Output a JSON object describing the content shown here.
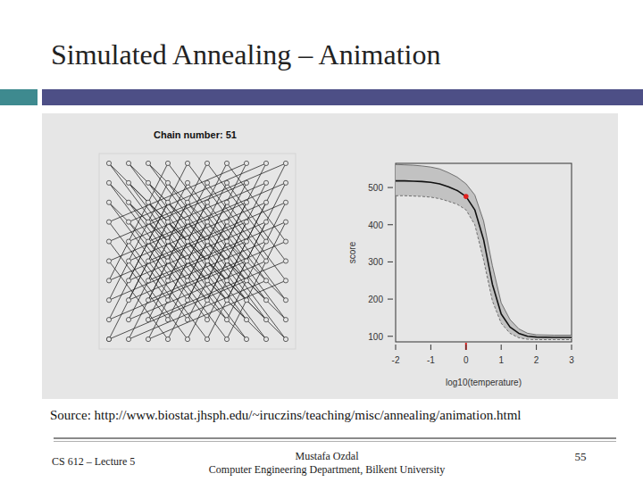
{
  "slide": {
    "title": "Simulated Annealing – Animation",
    "source": "Source: http://www.biostat.jhsph.edu/~iruczins/teaching/misc/annealing/animation.html",
    "footer_left": "CS 612 – Lecture 5",
    "footer_center": [
      "Mustafa Ozdal",
      "Computer Engineering Department, Bilkent University"
    ],
    "page": "55"
  },
  "chart_data": [
    {
      "type": "line",
      "title": "Chain number: 51",
      "x": [
        1,
        8,
        5,
        2,
        9,
        6,
        3,
        10,
        7,
        4,
        1,
        8,
        5,
        2,
        9,
        6,
        3,
        10,
        7,
        4,
        1,
        8,
        5,
        2,
        9,
        6,
        3,
        10,
        7,
        4,
        1,
        8,
        5,
        2,
        9,
        6,
        3,
        10,
        7,
        4,
        1,
        8,
        5,
        2,
        9,
        6,
        3,
        10,
        7,
        4,
        1,
        8,
        5,
        2,
        9,
        6,
        3,
        10,
        7,
        4,
        1,
        8,
        5,
        2,
        9,
        6,
        3,
        10,
        7,
        4,
        1,
        8,
        5,
        2,
        9,
        6,
        3,
        10,
        7,
        4,
        1,
        8,
        5,
        2,
        9,
        6,
        3,
        10,
        7,
        4,
        1,
        8,
        5,
        2,
        9,
        6,
        3,
        10,
        7,
        4,
        1
      ],
      "series": [
        {
          "color": "#2a2a2a",
          "marker": "circle",
          "values": [
            1,
            4,
            8,
            2,
            5,
            9,
            3,
            6,
            10,
            4,
            8,
            1,
            5,
            9,
            2,
            6,
            10,
            3,
            7,
            1,
            5,
            8,
            2,
            6,
            9,
            3,
            7,
            10,
            4,
            8,
            2,
            5,
            9,
            3,
            6,
            10,
            4,
            7,
            1,
            5,
            9,
            2,
            6,
            10,
            3,
            7,
            1,
            4,
            8,
            2,
            6,
            9,
            3,
            7,
            10,
            4,
            8,
            1,
            5,
            9,
            3,
            6,
            10,
            4,
            7,
            1,
            5,
            8,
            2,
            6,
            10,
            3,
            7,
            1,
            4,
            8,
            2,
            5,
            9,
            3,
            7,
            10,
            4,
            8,
            1,
            5,
            9,
            2,
            6,
            10,
            4,
            7,
            1,
            5,
            8,
            2,
            6,
            9,
            3,
            7,
            1
          ]
        }
      ],
      "xlim": [
        0.5,
        10.5
      ],
      "ylim": [
        0.5,
        10.5
      ],
      "tick_labels": false
    },
    {
      "type": "line",
      "xlabel": "log10(temperature)",
      "ylabel": "score",
      "x": [
        -2,
        -1.75,
        -1.5,
        -1.25,
        -1,
        -0.75,
        -0.5,
        -0.25,
        0,
        0.25,
        0.5,
        0.75,
        1,
        1.25,
        1.5,
        1.75,
        2,
        2.5,
        3
      ],
      "series": [
        {
          "color": "#111111",
          "values": [
            518,
            518,
            517,
            516,
            514,
            510,
            502,
            492,
            476,
            440,
            360,
            240,
            160,
            125,
            108,
            100,
            98,
            97,
            97
          ],
          "upper": [
            562,
            561,
            560,
            558,
            555,
            550,
            540,
            528,
            510,
            480,
            410,
            290,
            190,
            145,
            120,
            108,
            104,
            103,
            103
          ],
          "lower": [
            478,
            478,
            477,
            476,
            474,
            470,
            463,
            455,
            440,
            400,
            305,
            195,
            135,
            108,
            96,
            92,
            91,
            91,
            91
          ]
        }
      ],
      "xlim": [
        -2,
        3
      ],
      "ylim": [
        85,
        565
      ],
      "xticks": [
        -2,
        -1,
        0,
        1,
        2,
        3
      ],
      "yticks": [
        100,
        200,
        300,
        400,
        500
      ],
      "current": {
        "x": 0,
        "value": 476,
        "color": "#e0201e"
      }
    }
  ]
}
